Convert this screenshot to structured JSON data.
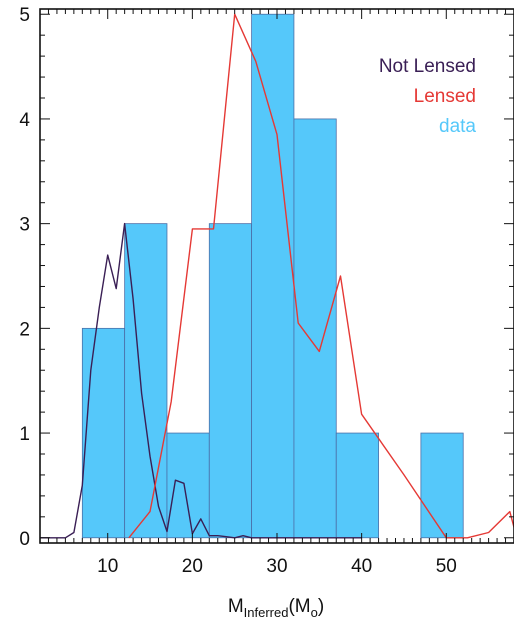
{
  "chart_data": {
    "type": "bar",
    "xlabel": {
      "main": "M",
      "sub": "Inferred",
      "paren_open": "(M",
      "paren_sub": "o",
      "paren_close": ")"
    },
    "ylabel": "",
    "xlim": [
      2,
      58
    ],
    "ylim": [
      -0.05,
      5.05
    ],
    "xticks": [
      10,
      20,
      30,
      40,
      50
    ],
    "yticks": [
      0,
      1,
      2,
      3,
      4,
      5
    ],
    "x_minor_step": 1,
    "y_minor_step": 0.2,
    "histogram": {
      "name": "data",
      "color": "#55c8fa",
      "edge_color": "#4a6fa8",
      "bins": [
        {
          "x0": 7,
          "x1": 12,
          "count": 2
        },
        {
          "x0": 12,
          "x1": 17,
          "count": 3
        },
        {
          "x0": 17,
          "x1": 22,
          "count": 1
        },
        {
          "x0": 22,
          "x1": 27,
          "count": 3
        },
        {
          "x0": 27,
          "x1": 32,
          "count": 5
        },
        {
          "x0": 32,
          "x1": 37,
          "count": 4
        },
        {
          "x0": 37,
          "x1": 42,
          "count": 1
        },
        {
          "x0": 42,
          "x1": 47,
          "count": 0
        },
        {
          "x0": 47,
          "x1": 52,
          "count": 1
        }
      ]
    },
    "series": [
      {
        "name": "Not Lensed",
        "color": "#3a1f55",
        "points": [
          [
            2,
            0
          ],
          [
            3,
            0
          ],
          [
            4,
            0
          ],
          [
            5,
            0
          ],
          [
            6,
            0.05
          ],
          [
            7,
            0.5
          ],
          [
            8,
            1.6
          ],
          [
            9,
            2.2
          ],
          [
            10,
            2.7
          ],
          [
            11,
            2.38
          ],
          [
            12,
            3.0
          ],
          [
            13,
            2.28
          ],
          [
            14,
            1.38
          ],
          [
            15,
            0.78
          ],
          [
            16,
            0.3
          ],
          [
            17,
            0.06
          ],
          [
            18,
            0.55
          ],
          [
            19,
            0.52
          ],
          [
            20,
            0.04
          ],
          [
            21,
            0.18
          ],
          [
            22,
            0.02
          ],
          [
            23,
            0.02
          ],
          [
            24,
            0.01
          ],
          [
            25,
            0
          ],
          [
            26,
            0.02
          ],
          [
            27,
            0
          ],
          [
            30,
            0
          ],
          [
            35,
            0
          ],
          [
            40,
            0
          ]
        ]
      },
      {
        "name": "Lensed",
        "color": "#e53935",
        "points": [
          [
            12.5,
            0
          ],
          [
            15,
            0.25
          ],
          [
            17.5,
            1.3
          ],
          [
            20,
            2.95
          ],
          [
            22.5,
            2.95
          ],
          [
            25,
            5.0
          ],
          [
            27.5,
            4.55
          ],
          [
            30,
            3.85
          ],
          [
            32.5,
            2.05
          ],
          [
            35,
            1.78
          ],
          [
            37.5,
            2.5
          ],
          [
            40,
            1.18
          ],
          [
            45,
            0.6
          ],
          [
            50,
            0
          ],
          [
            52.5,
            0
          ],
          [
            55,
            0.05
          ],
          [
            57.5,
            0.25
          ],
          [
            58,
            0.1
          ]
        ]
      }
    ],
    "legend": [
      {
        "label": "Not Lensed",
        "color": "#3a1f55"
      },
      {
        "label": "Lensed",
        "color": "#e53935"
      },
      {
        "label": "data",
        "color": "#55c8fa"
      }
    ],
    "legend_position": "top-right"
  }
}
